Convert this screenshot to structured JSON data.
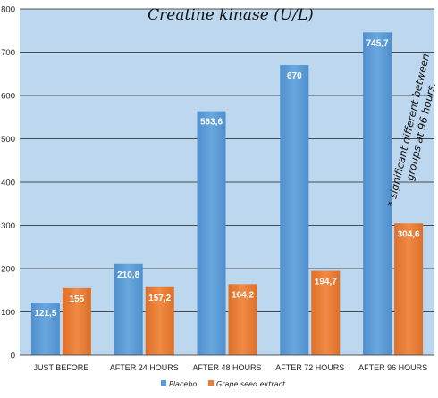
{
  "chart_data": {
    "type": "bar",
    "title": "Creatine kinase (U/L)",
    "categories": [
      "JUST BEFORE",
      "AFTER 24 HOURS",
      "AFTER 48 HOURS",
      "AFTER 72 HOURS",
      "AFTER 96 HOURS"
    ],
    "series": [
      {
        "name": "Placebo",
        "values": [
          121.5,
          210.8,
          563.6,
          670,
          745.7
        ],
        "labels": [
          "121,5",
          "210,8",
          "563,6",
          "670",
          "745,7"
        ],
        "color": "#5b9bd5"
      },
      {
        "name": "Grape seed extract",
        "values": [
          155,
          157.2,
          164.2,
          194.7,
          304.6
        ],
        "labels": [
          "155",
          "157,2",
          "164,2",
          "194,7",
          "304,6"
        ],
        "color": "#ed7d31"
      }
    ],
    "ylim": [
      0,
      800
    ],
    "yticks": [
      "0",
      "100",
      "200",
      "300",
      "400",
      "500",
      "600",
      "700",
      "800"
    ],
    "annotation": [
      "* significant different between",
      "groups at 96 hours."
    ],
    "legend_position": "bottom",
    "background": "#bdd7ee",
    "grid": true
  }
}
